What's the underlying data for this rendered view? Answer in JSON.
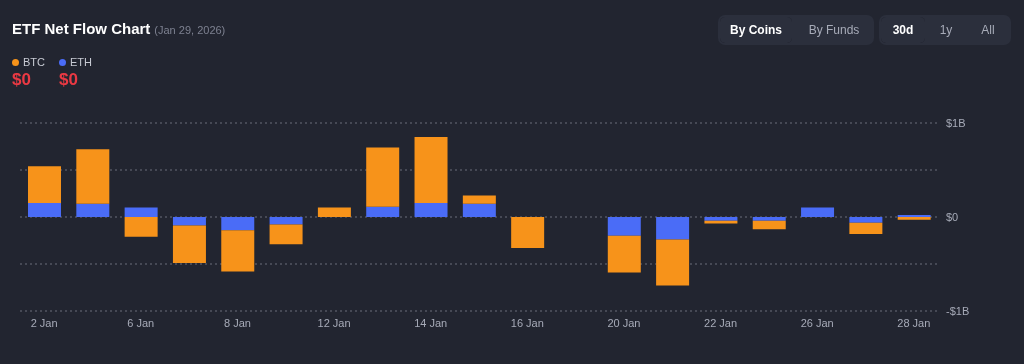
{
  "chart_data": {
    "type": "bar",
    "title": "ETF Net Flow Chart",
    "subtitle": "(Jan 29, 2026)",
    "categories": [
      "2 Jan",
      null,
      "6 Jan",
      null,
      "8 Jan",
      null,
      "12 Jan",
      null,
      "14 Jan",
      null,
      "16 Jan",
      null,
      "20 Jan",
      null,
      "22 Jan",
      null,
      "26 Jan",
      null,
      "28 Jan"
    ],
    "series": [
      {
        "name": "ETH",
        "color": "#4a6cf7",
        "values": [
          0.15,
          0.14,
          0.1,
          -0.09,
          -0.14,
          -0.08,
          0,
          0.11,
          0.15,
          0.14,
          0,
          null,
          -0.2,
          -0.24,
          -0.04,
          -0.04,
          0.1,
          -0.06,
          0.02
        ]
      },
      {
        "name": "BTC",
        "color": "#f7931a",
        "values": [
          0.39,
          0.58,
          -0.21,
          -0.4,
          -0.44,
          -0.21,
          0.1,
          0.63,
          0.7,
          0.09,
          -0.33,
          null,
          -0.39,
          -0.49,
          -0.03,
          -0.09,
          0,
          -0.12,
          -0.03
        ]
      }
    ],
    "stacked": true,
    "ylim": [
      -1,
      1
    ],
    "yticks": [
      {
        "value": -1,
        "label": "-$1B"
      },
      {
        "value": -0.5,
        "label": null
      },
      {
        "value": 0,
        "label": "$0"
      },
      {
        "value": 0.5,
        "label": null
      },
      {
        "value": 1,
        "label": "$1B"
      }
    ],
    "grid": "y",
    "legend": "top left",
    "annotations": [
      "$0",
      "$0",
      "By Coins",
      "By Funds",
      "30d",
      "1y",
      "All"
    ]
  }
}
